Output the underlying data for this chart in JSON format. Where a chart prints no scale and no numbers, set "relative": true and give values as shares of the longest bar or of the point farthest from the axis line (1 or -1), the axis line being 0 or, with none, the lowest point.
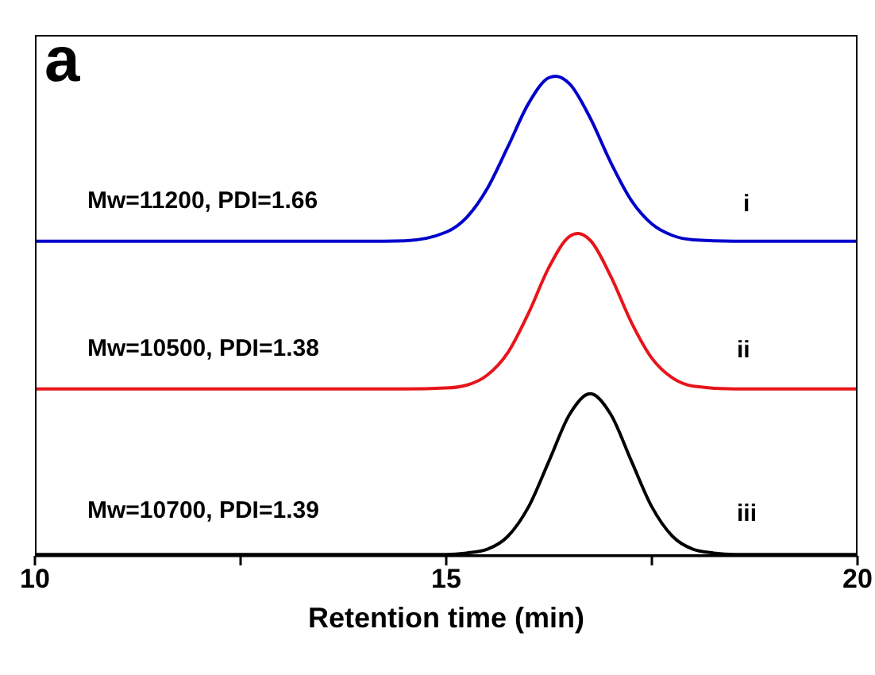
{
  "chart_data": {
    "type": "line",
    "title": "a",
    "xlabel": "Retention time (min)",
    "relative": true,
    "marker": "none",
    "line_style": "solid",
    "xlim": [
      10,
      20
    ],
    "xticks": [
      10,
      {
        "value": 12.5,
        "label": null
      },
      15,
      {
        "value": 17.5,
        "label": null
      },
      20
    ],
    "annotations": [
      "Mw=11200, PDI=1.66",
      "i",
      "Mw=10500, PDI=1.38",
      "ii",
      "Mw=10700, PDI=1.39",
      "iii"
    ],
    "series": [
      {
        "color": "#0000cc",
        "x": [
          10,
          14,
          14.5,
          15,
          15.25,
          15.5,
          15.75,
          16,
          16.25,
          16.33,
          16.5,
          16.75,
          17,
          17.25,
          17.5,
          17.75,
          18,
          18.5,
          20
        ],
        "values": [
          0.656,
          0.656,
          0.657,
          0.675,
          0.706,
          0.766,
          0.853,
          0.943,
          0.997,
          1,
          0.984,
          0.913,
          0.82,
          0.741,
          0.692,
          0.668,
          0.659,
          0.656,
          0.656
        ]
      },
      {
        "color": "#e8141b",
        "x": [
          10,
          14,
          14.5,
          15,
          15.25,
          15.5,
          15.75,
          16,
          16.25,
          16.5,
          16.6,
          16.75,
          17,
          17.25,
          17.5,
          17.75,
          18,
          18.5,
          20
        ],
        "values": [
          0.348,
          0.348,
          0.348,
          0.35,
          0.356,
          0.377,
          0.424,
          0.506,
          0.602,
          0.666,
          0.672,
          0.658,
          0.583,
          0.487,
          0.412,
          0.371,
          0.354,
          0.348,
          0.348
        ]
      },
      {
        "color": "#000000",
        "x": [
          10,
          14.5,
          15,
          15.25,
          15.5,
          15.75,
          16,
          16.25,
          16.5,
          16.75,
          17,
          17.25,
          17.5,
          17.75,
          18,
          18.25,
          18.5,
          20
        ],
        "values": [
          0.003,
          0.003,
          0.003,
          0.006,
          0.014,
          0.041,
          0.102,
          0.198,
          0.295,
          0.338,
          0.295,
          0.198,
          0.102,
          0.041,
          0.014,
          0.006,
          0.003,
          0.003
        ]
      }
    ]
  }
}
